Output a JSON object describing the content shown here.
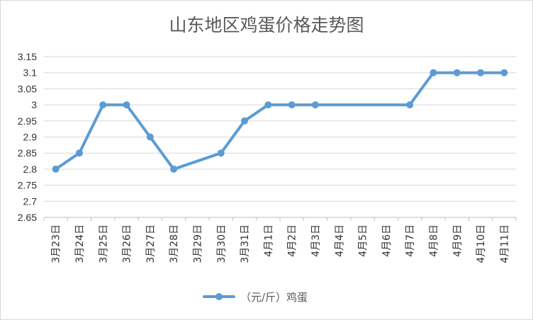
{
  "chart_data": {
    "type": "line",
    "title": "山东地区鸡蛋价格走势图",
    "categories": [
      "3月23日",
      "3月24日",
      "3月25日",
      "3月26日",
      "3月27日",
      "3月28日",
      "3月29日",
      "3月30日",
      "3月31日",
      "4月1日",
      "4月2日",
      "4月3日",
      "4月4日",
      "4月5日",
      "4月6日",
      "4月7日",
      "4月8日",
      "4月9日",
      "4月10日",
      "4月11日"
    ],
    "series": [
      {
        "name": "（元/斤）鸡蛋",
        "color": "#5b9bd5",
        "values": [
          2.8,
          2.85,
          3.0,
          3.0,
          2.9,
          2.8,
          null,
          2.85,
          2.95,
          3.0,
          3.0,
          3.0,
          null,
          null,
          null,
          3.0,
          3.1,
          3.1,
          3.1,
          3.1
        ]
      }
    ],
    "ylim": [
      2.65,
      3.15
    ],
    "yticks": [
      "2.65",
      "2.7",
      "2.75",
      "2.8",
      "2.85",
      "2.9",
      "2.95",
      "3",
      "3.05",
      "3.1",
      "3.15"
    ],
    "grid": true,
    "legend": "bottom"
  }
}
